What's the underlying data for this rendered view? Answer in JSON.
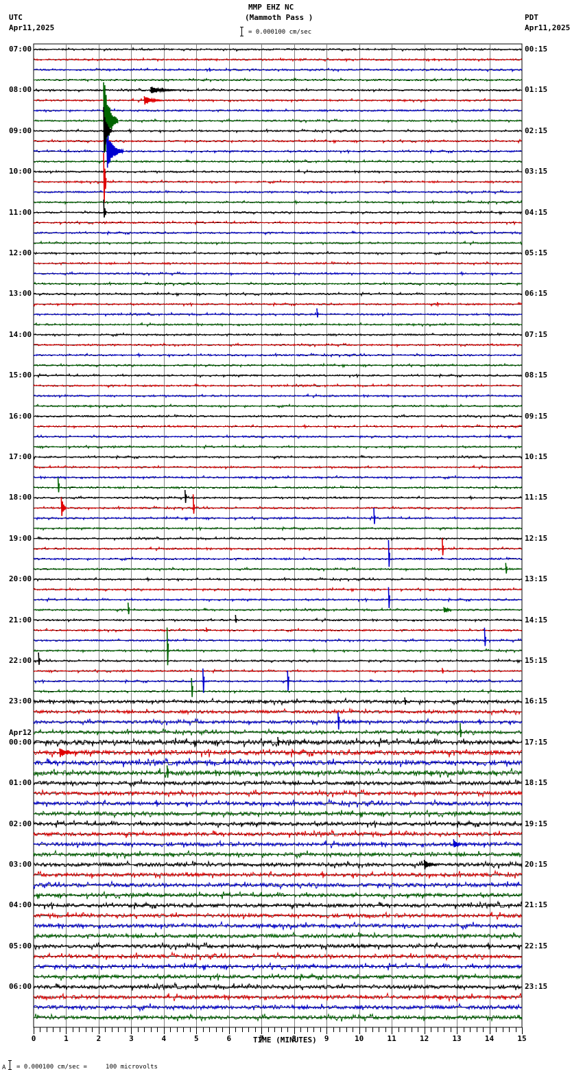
{
  "header": {
    "station": "MMP EHZ NC",
    "location": "(Mammoth Pass )",
    "scale_text": "= 0.000100 cm/sec",
    "left_tz": "UTC",
    "left_date": "Apr11,2025",
    "right_tz": "PDT",
    "right_date": "Apr11,2025"
  },
  "footer": {
    "scale_prefix": "A",
    "scale_text": "= 0.000100 cm/sec =     100 microvolts"
  },
  "colors": {
    "trace_cycle": [
      "#000000",
      "#e00000",
      "#0000d0",
      "#006400"
    ],
    "grid": "#808080",
    "frame": "#000000"
  },
  "chart_data": {
    "type": "line",
    "title": "MMP EHZ NC (Mammoth Pass )",
    "subtitle": "= 0.000100 cm/sec",
    "xlabel": "TIME (MINUTES)",
    "ylabel": "",
    "xlim": [
      0,
      15
    ],
    "x_ticks": [
      "0",
      "1",
      "2",
      "3",
      "4",
      "5",
      "6",
      "7",
      "8",
      "9",
      "10",
      "11",
      "12",
      "13",
      "14",
      "15"
    ],
    "traces_per_hour": 4,
    "trace_minutes": 15,
    "grid": true,
    "left_labels": [
      {
        "row": 0,
        "text": "07:00"
      },
      {
        "row": 4,
        "text": "08:00"
      },
      {
        "row": 8,
        "text": "09:00"
      },
      {
        "row": 12,
        "text": "10:00"
      },
      {
        "row": 16,
        "text": "11:00"
      },
      {
        "row": 20,
        "text": "12:00"
      },
      {
        "row": 24,
        "text": "13:00"
      },
      {
        "row": 28,
        "text": "14:00"
      },
      {
        "row": 32,
        "text": "15:00"
      },
      {
        "row": 36,
        "text": "16:00"
      },
      {
        "row": 40,
        "text": "17:00"
      },
      {
        "row": 44,
        "text": "18:00"
      },
      {
        "row": 48,
        "text": "19:00"
      },
      {
        "row": 52,
        "text": "20:00"
      },
      {
        "row": 56,
        "text": "21:00"
      },
      {
        "row": 60,
        "text": "22:00"
      },
      {
        "row": 64,
        "text": "23:00"
      },
      {
        "row": 68,
        "text": "00:00",
        "date": "Apr12"
      },
      {
        "row": 72,
        "text": "01:00"
      },
      {
        "row": 76,
        "text": "02:00"
      },
      {
        "row": 80,
        "text": "03:00"
      },
      {
        "row": 84,
        "text": "04:00"
      },
      {
        "row": 88,
        "text": "05:00"
      },
      {
        "row": 92,
        "text": "06:00"
      }
    ],
    "right_labels": [
      {
        "row": 0,
        "text": "00:15"
      },
      {
        "row": 4,
        "text": "01:15"
      },
      {
        "row": 8,
        "text": "02:15"
      },
      {
        "row": 12,
        "text": "03:15"
      },
      {
        "row": 16,
        "text": "04:15"
      },
      {
        "row": 20,
        "text": "05:15"
      },
      {
        "row": 24,
        "text": "06:15"
      },
      {
        "row": 28,
        "text": "07:15"
      },
      {
        "row": 32,
        "text": "08:15"
      },
      {
        "row": 36,
        "text": "09:15"
      },
      {
        "row": 40,
        "text": "10:15"
      },
      {
        "row": 44,
        "text": "11:15"
      },
      {
        "row": 48,
        "text": "12:15"
      },
      {
        "row": 52,
        "text": "13:15"
      },
      {
        "row": 56,
        "text": "14:15"
      },
      {
        "row": 60,
        "text": "15:15"
      },
      {
        "row": 64,
        "text": "16:15"
      },
      {
        "row": 68,
        "text": "17:15"
      },
      {
        "row": 72,
        "text": "18:15"
      },
      {
        "row": 76,
        "text": "19:15"
      },
      {
        "row": 80,
        "text": "20:15"
      },
      {
        "row": 84,
        "text": "21:15"
      },
      {
        "row": 88,
        "text": "22:15"
      },
      {
        "row": 92,
        "text": "23:15"
      }
    ],
    "row_count": 96,
    "noise_profile": [
      {
        "from": 0,
        "to": 64,
        "amp": 1.2
      },
      {
        "from": 64,
        "to": 68,
        "amp": 2.2
      },
      {
        "from": 68,
        "to": 72,
        "amp": 3.2
      },
      {
        "from": 72,
        "to": 96,
        "amp": 2.6
      }
    ],
    "events": [
      {
        "row": 1,
        "minute": 12.3,
        "amp": 2
      },
      {
        "row": 2,
        "minute": 5.4,
        "amp": 4
      },
      {
        "row": 4,
        "minute": 3.6,
        "amp": 6,
        "dur": 0.9
      },
      {
        "row": 5,
        "minute": 3.4,
        "amp": 8,
        "dur": 0.6
      },
      {
        "row": 7,
        "minute": 2.15,
        "amp": 70,
        "dur": 0.5
      },
      {
        "row": 8,
        "minute": 2.15,
        "amp": 40,
        "dur": 0.3
      },
      {
        "row": 10,
        "minute": 2.25,
        "amp": 30,
        "dur": 0.6
      },
      {
        "row": 13,
        "minute": 2.15,
        "amp": 60,
        "dur": 0.1
      },
      {
        "row": 16,
        "minute": 2.15,
        "amp": 20,
        "dur": 0.1
      },
      {
        "row": 26,
        "minute": 8.7,
        "amp": 12
      },
      {
        "row": 25,
        "minute": 12.4,
        "amp": 4
      },
      {
        "row": 43,
        "minute": 0.75,
        "amp": 18
      },
      {
        "row": 44,
        "minute": 4.65,
        "amp": 14
      },
      {
        "row": 45,
        "minute": 0.85,
        "amp": 20,
        "dur": 0.2
      },
      {
        "row": 45,
        "minute": 4.9,
        "amp": 22
      },
      {
        "row": 46,
        "minute": 10.45,
        "amp": 16
      },
      {
        "row": 49,
        "minute": 12.55,
        "amp": 18
      },
      {
        "row": 50,
        "minute": 10.9,
        "amp": 28
      },
      {
        "row": 51,
        "minute": 14.5,
        "amp": 14
      },
      {
        "row": 54,
        "minute": 10.9,
        "amp": 24
      },
      {
        "row": 55,
        "minute": 2.9,
        "amp": 12
      },
      {
        "row": 55,
        "minute": 12.6,
        "amp": 6,
        "dur": 0.3
      },
      {
        "row": 56,
        "minute": 6.2,
        "amp": 8
      },
      {
        "row": 57,
        "minute": 5.3,
        "amp": 6
      },
      {
        "row": 58,
        "minute": 13.85,
        "amp": 22
      },
      {
        "row": 59,
        "minute": 4.1,
        "amp": 40
      },
      {
        "row": 60,
        "minute": 0.15,
        "amp": 14
      },
      {
        "row": 61,
        "minute": 12.55,
        "amp": 6
      },
      {
        "row": 62,
        "minute": 5.2,
        "amp": 28
      },
      {
        "row": 62,
        "minute": 7.8,
        "amp": 26
      },
      {
        "row": 63,
        "minute": 4.85,
        "amp": 22
      },
      {
        "row": 64,
        "minute": 11.4,
        "amp": 8
      },
      {
        "row": 66,
        "minute": 9.35,
        "amp": 22
      },
      {
        "row": 67,
        "minute": 13.1,
        "amp": 14
      },
      {
        "row": 68,
        "minute": 7.5,
        "amp": 12
      },
      {
        "row": 69,
        "minute": 0.8,
        "amp": 8,
        "dur": 0.5
      },
      {
        "row": 71,
        "minute": 4.1,
        "amp": 12
      },
      {
        "row": 78,
        "minute": 12.9,
        "amp": 8,
        "dur": 0.3
      },
      {
        "row": 80,
        "minute": 12.0,
        "amp": 8,
        "dur": 0.4
      }
    ]
  }
}
